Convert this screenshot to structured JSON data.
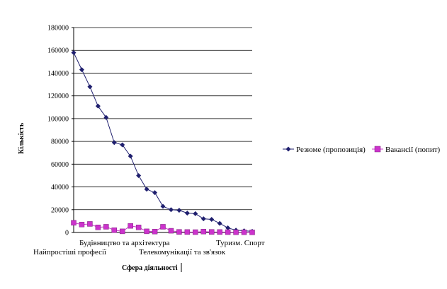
{
  "chart_data": {
    "type": "line",
    "title": "",
    "xlabel": "Сфера діяльності",
    "ylabel": "Кількість",
    "ylim": [
      0,
      180000
    ],
    "yticks": [
      "0",
      "20000",
      "40000",
      "60000",
      "80000",
      "100000",
      "120000",
      "140000",
      "160000",
      "180000"
    ],
    "grid": true,
    "legend_position": "right",
    "x_tick_labels": [
      "Будівництво та архітектура",
      "Найпростіші професії",
      "Телекомунікації та зв'язок",
      "Туризм. Спорт"
    ],
    "series": [
      {
        "name": "Резюме (пропозиція)",
        "color": "#1f1f6e",
        "marker": "diamond",
        "values": [
          158000,
          143000,
          128000,
          111000,
          101000,
          79000,
          77000,
          67000,
          50000,
          38000,
          35000,
          23000,
          20000,
          19500,
          17000,
          16500,
          12000,
          11500,
          8000,
          4000,
          2000,
          1500,
          1000
        ]
      },
      {
        "name": "Вакансії (попит)",
        "color": "#cc33cc",
        "marker": "square",
        "values": [
          8500,
          7000,
          7500,
          4500,
          5000,
          2000,
          1000,
          5800,
          4500,
          1000,
          800,
          5000,
          1500,
          500,
          400,
          300,
          800,
          500,
          400,
          300,
          200,
          200,
          100
        ]
      }
    ]
  }
}
